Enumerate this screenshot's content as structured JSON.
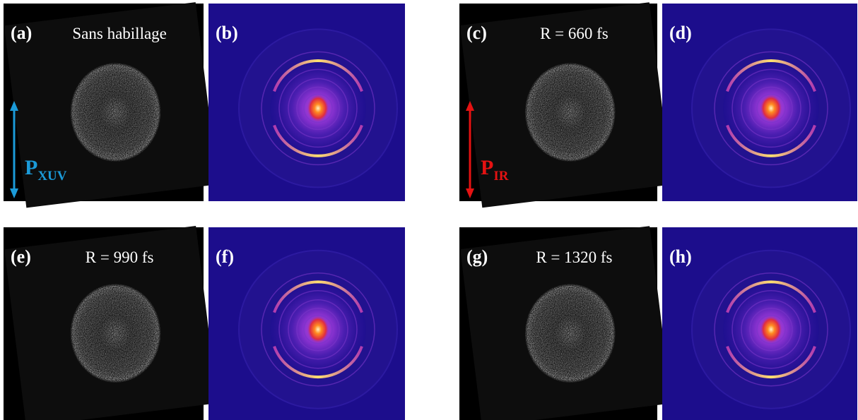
{
  "panels": [
    {
      "label": "(a)",
      "caption": "Sans habillage",
      "arrow": {
        "symbol": "P",
        "subscript": "XUV",
        "color": "#1b9ad8"
      }
    },
    {
      "label": "(b)"
    },
    {
      "label": "(c)",
      "caption": "R = 660 fs",
      "arrow": {
        "symbol": "P",
        "subscript": "IR",
        "color": "#e51212"
      }
    },
    {
      "label": "(d)"
    },
    {
      "label": "(e)",
      "caption": "R = 990 fs"
    },
    {
      "label": "(f)"
    },
    {
      "label": "(g)",
      "caption": "R = 1320 fs"
    },
    {
      "label": "(h)"
    }
  ]
}
